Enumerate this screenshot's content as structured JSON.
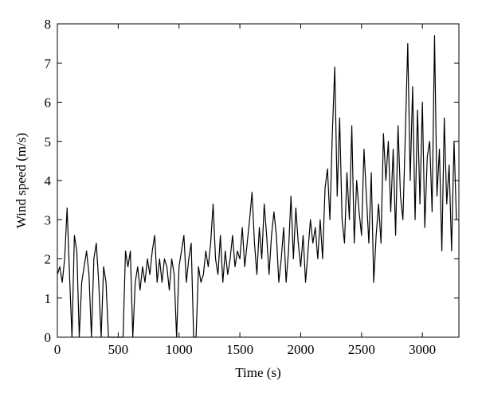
{
  "chart_data": {
    "type": "line",
    "x_label": "Time (s)",
    "y_label": "Wind speed (m/s)",
    "xlim": [
      0,
      3300
    ],
    "ylim": [
      0,
      8
    ],
    "xticks": [
      0,
      500,
      1000,
      1500,
      2000,
      2500,
      3000
    ],
    "yticks": [
      0,
      1,
      2,
      3,
      4,
      5,
      6,
      7,
      8
    ],
    "grid": false,
    "series": [
      {
        "color": "#000000",
        "x": [
          0,
          20,
          40,
          60,
          80,
          100,
          120,
          140,
          160,
          180,
          200,
          220,
          240,
          260,
          280,
          300,
          320,
          340,
          360,
          380,
          400,
          420,
          440,
          460,
          480,
          500,
          520,
          540,
          560,
          580,
          600,
          620,
          640,
          660,
          680,
          700,
          720,
          740,
          760,
          780,
          800,
          820,
          840,
          860,
          880,
          900,
          920,
          940,
          960,
          980,
          1000,
          1020,
          1040,
          1060,
          1080,
          1100,
          1120,
          1140,
          1160,
          1180,
          1200,
          1220,
          1240,
          1260,
          1280,
          1300,
          1320,
          1340,
          1360,
          1380,
          1400,
          1420,
          1440,
          1460,
          1480,
          1500,
          1520,
          1540,
          1560,
          1580,
          1600,
          1620,
          1640,
          1660,
          1680,
          1700,
          1720,
          1740,
          1760,
          1780,
          1800,
          1820,
          1840,
          1860,
          1880,
          1900,
          1920,
          1940,
          1960,
          1980,
          2000,
          2020,
          2040,
          2060,
          2080,
          2100,
          2120,
          2140,
          2160,
          2180,
          2200,
          2220,
          2240,
          2260,
          2280,
          2300,
          2320,
          2340,
          2360,
          2380,
          2400,
          2420,
          2440,
          2460,
          2480,
          2500,
          2520,
          2540,
          2560,
          2580,
          2600,
          2620,
          2640,
          2660,
          2680,
          2700,
          2720,
          2740,
          2760,
          2780,
          2800,
          2820,
          2840,
          2860,
          2880,
          2900,
          2920,
          2940,
          2960,
          2980,
          3000,
          3020,
          3040,
          3060,
          3080,
          3100,
          3120,
          3140,
          3160,
          3180,
          3200,
          3220,
          3240,
          3260,
          3280
        ],
        "values": [
          1.6,
          1.8,
          1.4,
          2.0,
          3.3,
          1.6,
          0,
          2.6,
          2.2,
          0,
          1.4,
          1.8,
          2.2,
          1.6,
          0,
          2.0,
          2.4,
          1.4,
          0,
          1.8,
          1.4,
          0,
          0,
          0,
          0,
          0,
          0,
          0,
          2.2,
          1.8,
          2.2,
          0,
          1.4,
          1.8,
          1.2,
          1.8,
          1.4,
          2.0,
          1.6,
          2.2,
          2.6,
          1.4,
          2.0,
          1.4,
          2.0,
          1.8,
          1.2,
          2.0,
          1.6,
          0,
          1.8,
          2.2,
          2.6,
          1.4,
          2.0,
          2.4,
          0,
          0,
          1.8,
          1.4,
          1.6,
          2.2,
          1.8,
          2.4,
          3.4,
          2.0,
          1.6,
          2.6,
          1.4,
          2.2,
          1.6,
          2.0,
          2.6,
          1.8,
          2.2,
          2.0,
          2.8,
          1.8,
          2.4,
          3.0,
          3.7,
          2.4,
          1.6,
          2.8,
          2.0,
          3.4,
          2.6,
          1.6,
          2.6,
          3.2,
          2.6,
          1.4,
          2.0,
          2.8,
          1.4,
          2.2,
          3.6,
          2.0,
          3.3,
          2.4,
          1.8,
          2.6,
          1.4,
          2.2,
          3.0,
          2.4,
          2.8,
          2.0,
          3.0,
          2.0,
          3.8,
          4.3,
          3.0,
          5.2,
          6.9,
          3.6,
          5.6,
          3.0,
          2.4,
          4.2,
          3.0,
          5.4,
          2.4,
          4.0,
          3.2,
          2.6,
          4.8,
          3.6,
          2.4,
          4.2,
          1.4,
          2.6,
          3.4,
          2.4,
          5.2,
          4.0,
          5.0,
          3.2,
          4.8,
          2.6,
          5.4,
          3.6,
          3.0,
          5.2,
          7.5,
          4.0,
          6.4,
          3.0,
          5.8,
          3.4,
          6.0,
          2.8,
          4.6,
          5.0,
          3.2,
          7.7,
          3.6,
          4.8,
          2.2,
          5.6,
          3.4,
          4.4,
          2.2,
          5.0,
          3.0
        ]
      }
    ]
  }
}
